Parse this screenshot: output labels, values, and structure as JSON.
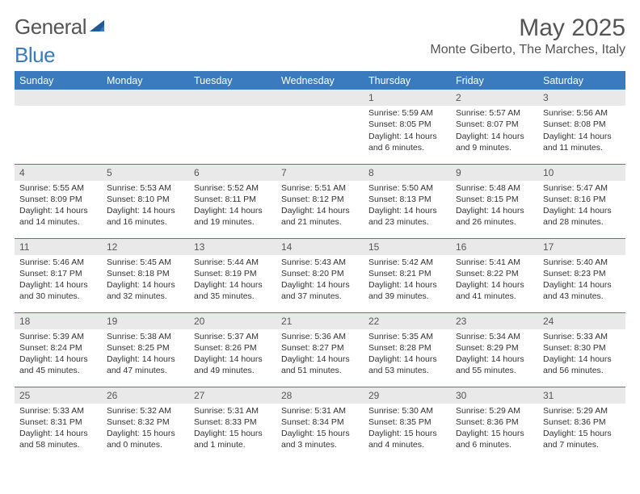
{
  "branding": {
    "logo_text_1": "General",
    "logo_text_2": "Blue",
    "logo_text_color": "#555555",
    "logo_accent_color": "#3a7abf"
  },
  "header": {
    "month_title": "May 2025",
    "location": "Monte Giberto, The Marches, Italy"
  },
  "style": {
    "accent_color": "#3a7abf",
    "header_bg": "#3a7abf",
    "header_text": "#ffffff",
    "daynum_bg": "#e9e9e9",
    "body_text": "#333333",
    "title_fontsize_pt": 22,
    "location_fontsize_pt": 12,
    "weekday_fontsize_pt": 9.5,
    "cell_fontsize_pt": 8
  },
  "calendar": {
    "weekdays": [
      "Sunday",
      "Monday",
      "Tuesday",
      "Wednesday",
      "Thursday",
      "Friday",
      "Saturday"
    ],
    "weeks": [
      [
        null,
        null,
        null,
        null,
        {
          "day": "1",
          "sunrise": "Sunrise: 5:59 AM",
          "sunset": "Sunset: 8:05 PM",
          "daylight": "Daylight: 14 hours and 6 minutes."
        },
        {
          "day": "2",
          "sunrise": "Sunrise: 5:57 AM",
          "sunset": "Sunset: 8:07 PM",
          "daylight": "Daylight: 14 hours and 9 minutes."
        },
        {
          "day": "3",
          "sunrise": "Sunrise: 5:56 AM",
          "sunset": "Sunset: 8:08 PM",
          "daylight": "Daylight: 14 hours and 11 minutes."
        }
      ],
      [
        {
          "day": "4",
          "sunrise": "Sunrise: 5:55 AM",
          "sunset": "Sunset: 8:09 PM",
          "daylight": "Daylight: 14 hours and 14 minutes."
        },
        {
          "day": "5",
          "sunrise": "Sunrise: 5:53 AM",
          "sunset": "Sunset: 8:10 PM",
          "daylight": "Daylight: 14 hours and 16 minutes."
        },
        {
          "day": "6",
          "sunrise": "Sunrise: 5:52 AM",
          "sunset": "Sunset: 8:11 PM",
          "daylight": "Daylight: 14 hours and 19 minutes."
        },
        {
          "day": "7",
          "sunrise": "Sunrise: 5:51 AM",
          "sunset": "Sunset: 8:12 PM",
          "daylight": "Daylight: 14 hours and 21 minutes."
        },
        {
          "day": "8",
          "sunrise": "Sunrise: 5:50 AM",
          "sunset": "Sunset: 8:13 PM",
          "daylight": "Daylight: 14 hours and 23 minutes."
        },
        {
          "day": "9",
          "sunrise": "Sunrise: 5:48 AM",
          "sunset": "Sunset: 8:15 PM",
          "daylight": "Daylight: 14 hours and 26 minutes."
        },
        {
          "day": "10",
          "sunrise": "Sunrise: 5:47 AM",
          "sunset": "Sunset: 8:16 PM",
          "daylight": "Daylight: 14 hours and 28 minutes."
        }
      ],
      [
        {
          "day": "11",
          "sunrise": "Sunrise: 5:46 AM",
          "sunset": "Sunset: 8:17 PM",
          "daylight": "Daylight: 14 hours and 30 minutes."
        },
        {
          "day": "12",
          "sunrise": "Sunrise: 5:45 AM",
          "sunset": "Sunset: 8:18 PM",
          "daylight": "Daylight: 14 hours and 32 minutes."
        },
        {
          "day": "13",
          "sunrise": "Sunrise: 5:44 AM",
          "sunset": "Sunset: 8:19 PM",
          "daylight": "Daylight: 14 hours and 35 minutes."
        },
        {
          "day": "14",
          "sunrise": "Sunrise: 5:43 AM",
          "sunset": "Sunset: 8:20 PM",
          "daylight": "Daylight: 14 hours and 37 minutes."
        },
        {
          "day": "15",
          "sunrise": "Sunrise: 5:42 AM",
          "sunset": "Sunset: 8:21 PM",
          "daylight": "Daylight: 14 hours and 39 minutes."
        },
        {
          "day": "16",
          "sunrise": "Sunrise: 5:41 AM",
          "sunset": "Sunset: 8:22 PM",
          "daylight": "Daylight: 14 hours and 41 minutes."
        },
        {
          "day": "17",
          "sunrise": "Sunrise: 5:40 AM",
          "sunset": "Sunset: 8:23 PM",
          "daylight": "Daylight: 14 hours and 43 minutes."
        }
      ],
      [
        {
          "day": "18",
          "sunrise": "Sunrise: 5:39 AM",
          "sunset": "Sunset: 8:24 PM",
          "daylight": "Daylight: 14 hours and 45 minutes."
        },
        {
          "day": "19",
          "sunrise": "Sunrise: 5:38 AM",
          "sunset": "Sunset: 8:25 PM",
          "daylight": "Daylight: 14 hours and 47 minutes."
        },
        {
          "day": "20",
          "sunrise": "Sunrise: 5:37 AM",
          "sunset": "Sunset: 8:26 PM",
          "daylight": "Daylight: 14 hours and 49 minutes."
        },
        {
          "day": "21",
          "sunrise": "Sunrise: 5:36 AM",
          "sunset": "Sunset: 8:27 PM",
          "daylight": "Daylight: 14 hours and 51 minutes."
        },
        {
          "day": "22",
          "sunrise": "Sunrise: 5:35 AM",
          "sunset": "Sunset: 8:28 PM",
          "daylight": "Daylight: 14 hours and 53 minutes."
        },
        {
          "day": "23",
          "sunrise": "Sunrise: 5:34 AM",
          "sunset": "Sunset: 8:29 PM",
          "daylight": "Daylight: 14 hours and 55 minutes."
        },
        {
          "day": "24",
          "sunrise": "Sunrise: 5:33 AM",
          "sunset": "Sunset: 8:30 PM",
          "daylight": "Daylight: 14 hours and 56 minutes."
        }
      ],
      [
        {
          "day": "25",
          "sunrise": "Sunrise: 5:33 AM",
          "sunset": "Sunset: 8:31 PM",
          "daylight": "Daylight: 14 hours and 58 minutes."
        },
        {
          "day": "26",
          "sunrise": "Sunrise: 5:32 AM",
          "sunset": "Sunset: 8:32 PM",
          "daylight": "Daylight: 15 hours and 0 minutes."
        },
        {
          "day": "27",
          "sunrise": "Sunrise: 5:31 AM",
          "sunset": "Sunset: 8:33 PM",
          "daylight": "Daylight: 15 hours and 1 minute."
        },
        {
          "day": "28",
          "sunrise": "Sunrise: 5:31 AM",
          "sunset": "Sunset: 8:34 PM",
          "daylight": "Daylight: 15 hours and 3 minutes."
        },
        {
          "day": "29",
          "sunrise": "Sunrise: 5:30 AM",
          "sunset": "Sunset: 8:35 PM",
          "daylight": "Daylight: 15 hours and 4 minutes."
        },
        {
          "day": "30",
          "sunrise": "Sunrise: 5:29 AM",
          "sunset": "Sunset: 8:36 PM",
          "daylight": "Daylight: 15 hours and 6 minutes."
        },
        {
          "day": "31",
          "sunrise": "Sunrise: 5:29 AM",
          "sunset": "Sunset: 8:36 PM",
          "daylight": "Daylight: 15 hours and 7 minutes."
        }
      ]
    ]
  }
}
